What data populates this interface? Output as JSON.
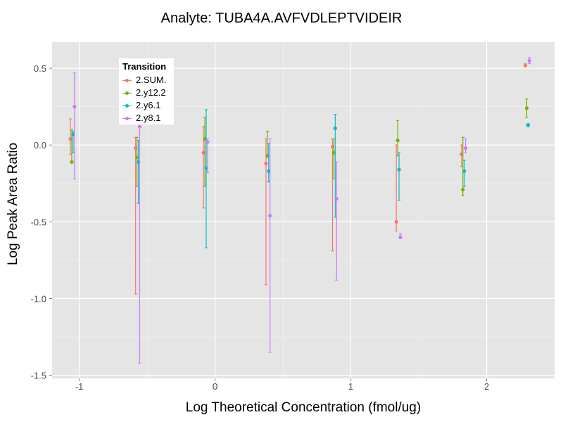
{
  "chart_data": {
    "type": "scatter",
    "title": "Analyte: TUBA4A.AVFVDLEPTVIDEIR",
    "xlabel": "Log Theoretical Concentration (fmol/ug)",
    "ylabel": "Log Peak Area Ratio",
    "xlim": [
      -1.2,
      2.5
    ],
    "ylim": [
      -1.52,
      0.67
    ],
    "x_ticks": [
      -1,
      0,
      1,
      2
    ],
    "x_tick_labels": [
      "-1",
      "0",
      "1",
      "2"
    ],
    "y_ticks": [
      -1.5,
      -1.0,
      -0.5,
      0.0,
      0.5
    ],
    "y_tick_labels": [
      "-1.5",
      "-1.0",
      "-0.5",
      "0.0",
      "0.5"
    ],
    "grid": true,
    "error_bars": true,
    "legend": {
      "title": "Transition",
      "placement": "top-left"
    },
    "series": [
      {
        "name": "2.SUM.",
        "color": "#F8766D",
        "x": [
          -1.065,
          -0.585,
          -0.085,
          0.375,
          0.865,
          1.335,
          1.815,
          2.285
        ],
        "y": [
          0.04,
          -0.02,
          -0.05,
          -0.12,
          -0.01,
          -0.5,
          -0.06,
          0.52
        ],
        "ymin": [
          -0.06,
          -0.97,
          -0.41,
          -0.91,
          -0.69,
          -0.56,
          -0.14,
          0.51
        ],
        "ymax": [
          0.17,
          0.05,
          0.12,
          0.04,
          0.04,
          0.0,
          0.0,
          0.53
        ]
      },
      {
        "name": "2.y12.2",
        "color": "#7CAE00",
        "x": [
          -1.055,
          -0.575,
          -0.075,
          0.385,
          0.875,
          1.345,
          1.825,
          2.295
        ],
        "y": [
          -0.11,
          -0.08,
          0.04,
          -0.07,
          -0.05,
          0.03,
          -0.29,
          0.24
        ],
        "ymin": [
          -0.11,
          -0.27,
          -0.27,
          -0.08,
          -0.22,
          -0.07,
          -0.33,
          0.18
        ],
        "ymax": [
          0.1,
          0.05,
          0.18,
          0.09,
          0.04,
          0.16,
          0.05,
          0.3
        ]
      },
      {
        "name": "2.y6.1",
        "color": "#00BFC4",
        "x": [
          -1.045,
          -0.565,
          -0.065,
          0.395,
          0.885,
          1.355,
          1.835,
          2.305
        ],
        "y": [
          0.07,
          -0.11,
          -0.15,
          -0.17,
          0.11,
          -0.16,
          -0.17,
          0.13
        ],
        "ymin": [
          -0.05,
          -0.38,
          -0.67,
          -0.24,
          -0.47,
          -0.36,
          -0.27,
          0.12
        ],
        "ymax": [
          0.09,
          0.03,
          0.23,
          0.01,
          0.2,
          -0.05,
          -0.1,
          0.14
        ]
      },
      {
        "name": "2.y8.1",
        "color": "#C77CFF",
        "x": [
          -1.035,
          -0.555,
          -0.055,
          0.405,
          0.895,
          1.365,
          1.845,
          2.315
        ],
        "y": [
          0.25,
          0.12,
          0.02,
          -0.46,
          -0.35,
          -0.6,
          -0.02,
          0.55
        ],
        "ymin": [
          -0.22,
          -1.42,
          -0.18,
          -1.35,
          -0.88,
          -0.61,
          -0.05,
          0.53
        ],
        "ymax": [
          0.47,
          0.16,
          0.04,
          0.04,
          -0.11,
          -0.58,
          0.04,
          0.57
        ]
      }
    ]
  }
}
